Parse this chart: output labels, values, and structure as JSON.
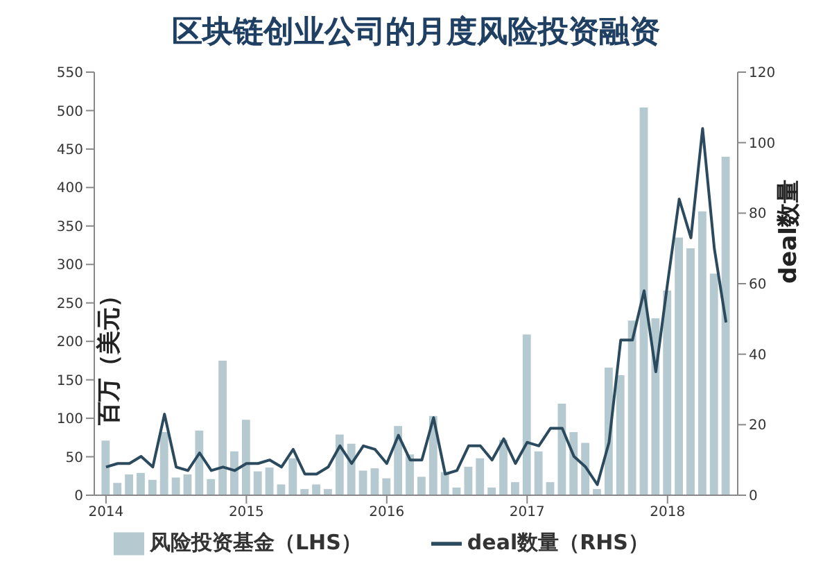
{
  "chart_data": {
    "type": "bar",
    "title": "区块链创业公司的月度风险投资融资",
    "ylabel": "百万（美元）",
    "y2label": "deal数量",
    "x": [
      "2014-01",
      "2014-02",
      "2014-03",
      "2014-04",
      "2014-05",
      "2014-06",
      "2014-07",
      "2014-08",
      "2014-09",
      "2014-10",
      "2014-11",
      "2014-12",
      "2015-01",
      "2015-02",
      "2015-03",
      "2015-04",
      "2015-05",
      "2015-06",
      "2015-07",
      "2015-08",
      "2015-09",
      "2015-10",
      "2015-11",
      "2015-12",
      "2016-01",
      "2016-02",
      "2016-03",
      "2016-04",
      "2016-05",
      "2016-06",
      "2016-07",
      "2016-08",
      "2016-09",
      "2016-10",
      "2016-11",
      "2016-12",
      "2017-01",
      "2017-02",
      "2017-03",
      "2017-04",
      "2017-05",
      "2017-06",
      "2017-07",
      "2017-08",
      "2017-09",
      "2017-10",
      "2017-11",
      "2017-12",
      "2018-01",
      "2018-02",
      "2018-03",
      "2018-04",
      "2018-05",
      "2018-06"
    ],
    "series": [
      {
        "name": "风险投资基金（LHS）",
        "color": "#b5c9d0",
        "values": [
          71,
          16,
          27,
          29,
          20,
          82,
          23,
          27,
          84,
          21,
          175,
          57,
          98,
          31,
          36,
          14,
          48,
          8,
          14,
          8,
          79,
          67,
          32,
          35,
          22,
          90,
          53,
          24,
          103,
          30,
          10,
          37,
          48,
          10,
          72,
          17,
          209,
          57,
          17,
          119,
          82,
          68,
          8,
          166,
          156,
          227,
          504,
          230,
          266,
          335,
          321,
          369,
          288,
          440
        ]
      },
      {
        "name": "deal数量（RHS）",
        "type": "line",
        "axis": "y2",
        "color": "#2b4a5e",
        "values": [
          8,
          9,
          9,
          11,
          8,
          23,
          8,
          7,
          12,
          7,
          8,
          7,
          9,
          9,
          10,
          8,
          13,
          6,
          6,
          8,
          14,
          9,
          14,
          13,
          9,
          17,
          10,
          10,
          22,
          6,
          7,
          14,
          14,
          10,
          16,
          9,
          15,
          14,
          19,
          19,
          11,
          8,
          3,
          15,
          44,
          44,
          58,
          35,
          60,
          84,
          73,
          104,
          70,
          49
        ]
      }
    ],
    "xlim": [
      "2013-12",
      "2018-07"
    ],
    "xticks": [
      "2014",
      "2015",
      "2016",
      "2017",
      "2018"
    ],
    "ylim": [
      0,
      550
    ],
    "yticks": [
      0,
      50,
      100,
      150,
      200,
      250,
      300,
      350,
      400,
      450,
      500,
      550
    ],
    "y2lim": [
      0,
      120
    ],
    "y2ticks": [
      0,
      20,
      40,
      60,
      80,
      100,
      120
    ],
    "legend": "bottom"
  }
}
